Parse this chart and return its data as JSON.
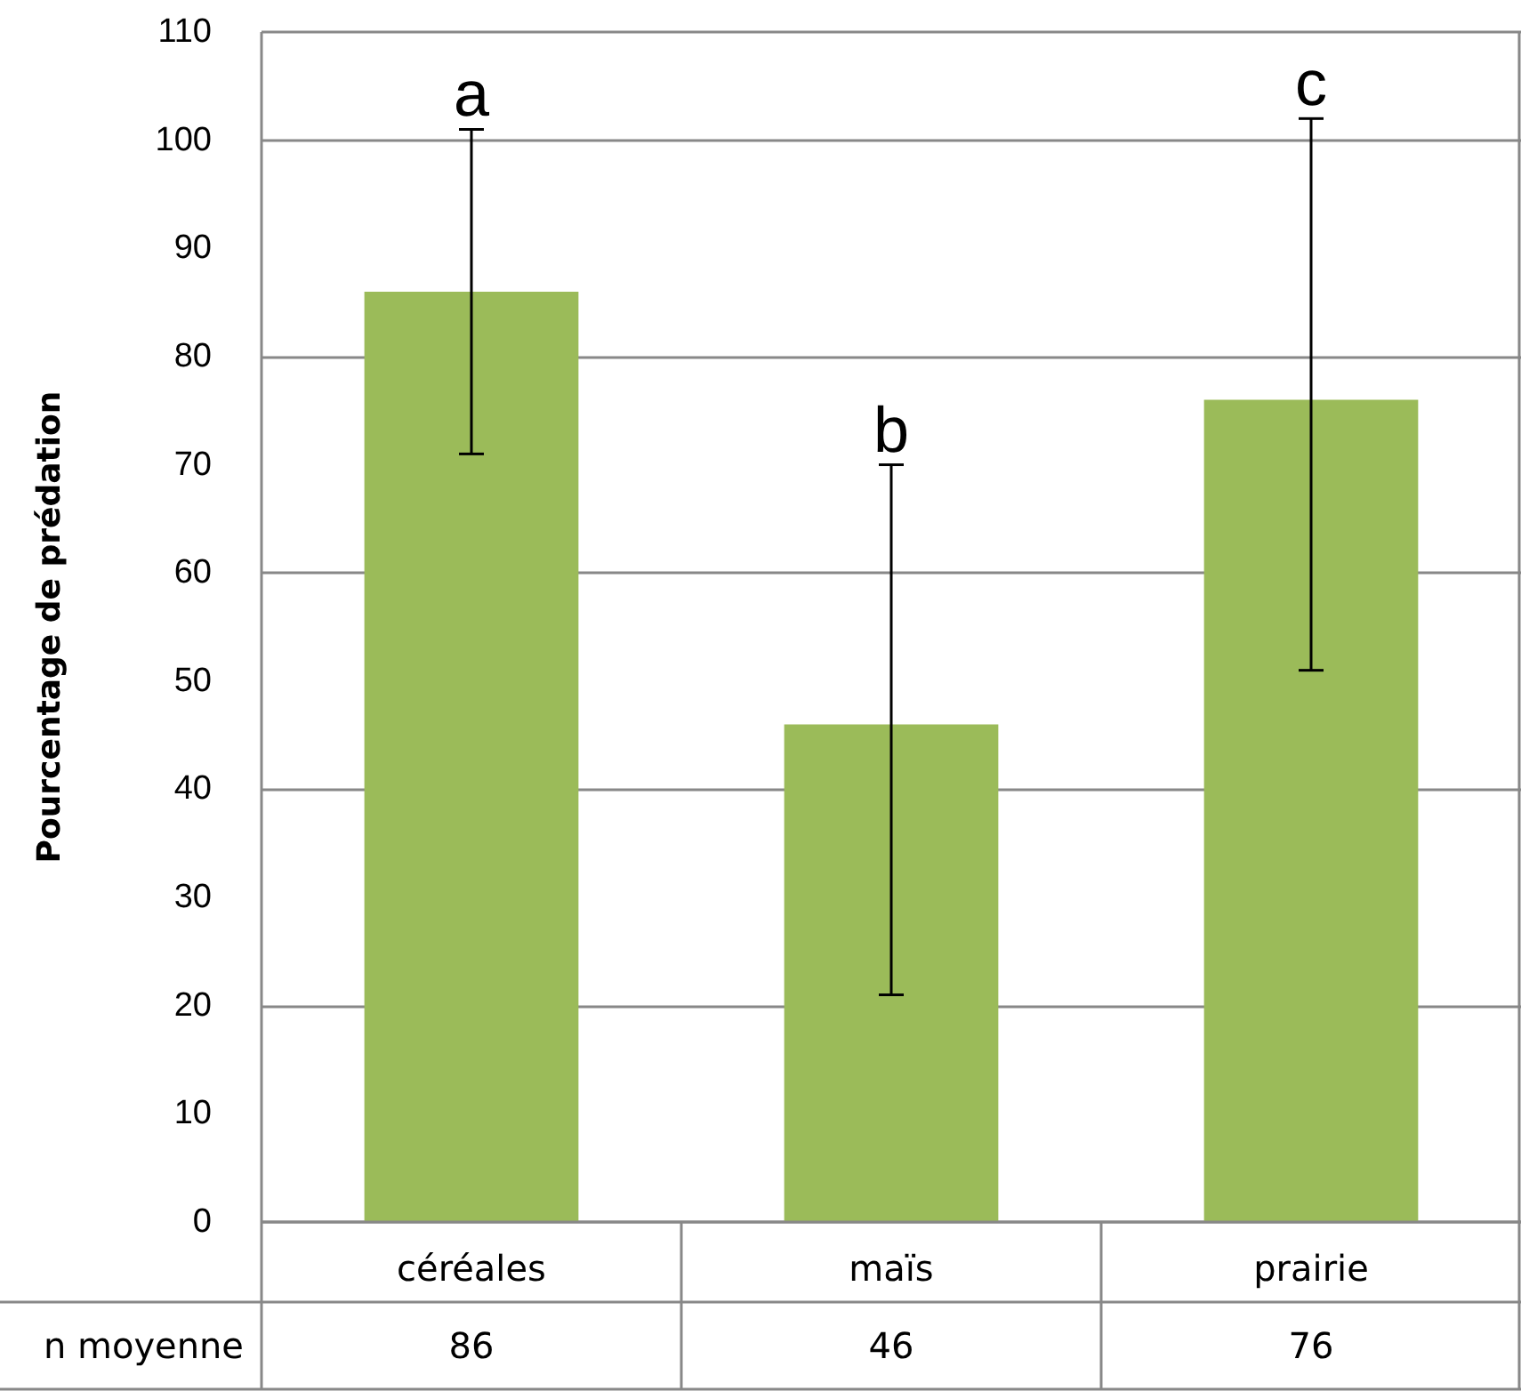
{
  "chart_data": {
    "type": "bar",
    "ylabel": "Pourcentage de prédation",
    "categories": [
      "céréales",
      "maïs",
      "prairie"
    ],
    "values": [
      86,
      46,
      76
    ],
    "color": "#9bbb59",
    "errors": [
      [
        71,
        101
      ],
      [
        21,
        70
      ],
      [
        51,
        102
      ]
    ],
    "ylim": [
      0,
      110
    ],
    "yticks": [
      0,
      10,
      20,
      30,
      40,
      50,
      60,
      70,
      80,
      90,
      100,
      110
    ],
    "grid": "y",
    "data_labels": true,
    "annotations": [
      {
        "text": "a",
        "x": "céréales",
        "y": 101
      },
      {
        "text": "b",
        "x": "maïs",
        "y": 70
      },
      {
        "text": "c",
        "x": "prairie",
        "y": 102
      },
      "n moyenne"
    ]
  }
}
